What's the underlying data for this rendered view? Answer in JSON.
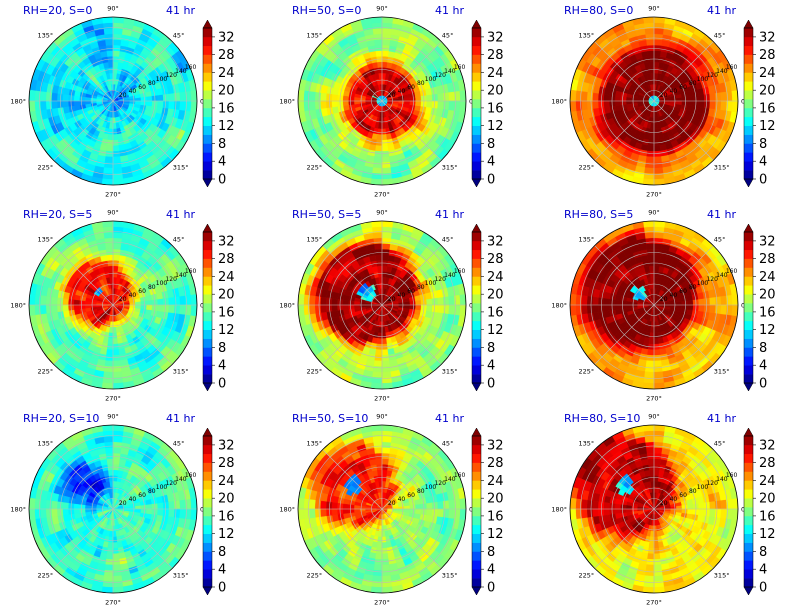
{
  "figure": {
    "colormap": "jet",
    "colorbar": {
      "min": 0,
      "max": 34,
      "ticks": [
        0,
        4,
        8,
        12,
        16,
        20,
        24,
        28,
        32
      ],
      "extend": "both"
    },
    "title_color": "#0000cc",
    "grid_color": "#bbbbbb"
  },
  "chart_data": [
    {
      "type": "heatmap",
      "projection": "polar",
      "title": "RH=20, S=0",
      "time_label": "41 hr",
      "angle_ticks": [
        "0°",
        "45°",
        "90°",
        "135°",
        "180°",
        "225°",
        "270°",
        "315°"
      ],
      "radius_ticks": [
        "20",
        "40",
        "60",
        "80",
        "100",
        "120",
        "140",
        "160"
      ],
      "radius_tick_angle_deg": 22.5,
      "rh": 20,
      "shear": 0,
      "core_level": 9,
      "inner_radius": 0,
      "outer_radius": 0.08,
      "env_level": 13,
      "spread": 7,
      "colorbar_ticks": [
        "0",
        "4",
        "8",
        "12",
        "16",
        "20",
        "24",
        "28",
        "32"
      ]
    },
    {
      "type": "heatmap",
      "projection": "polar",
      "title": "RH=50, S=0",
      "time_label": "41 hr",
      "angle_ticks": [
        "0°",
        "45°",
        "90°",
        "135°",
        "180°",
        "225°",
        "270°",
        "315°"
      ],
      "radius_ticks": [
        "20",
        "40",
        "60",
        "80",
        "100",
        "120",
        "140",
        "160"
      ],
      "radius_tick_angle_deg": 22.5,
      "rh": 50,
      "shear": 0,
      "core_level": 31,
      "inner_radius": 0.1,
      "outer_radius": 0.4,
      "env_level": 17,
      "spread": 6,
      "colorbar_ticks": [
        "0",
        "4",
        "8",
        "12",
        "16",
        "20",
        "24",
        "28",
        "32"
      ]
    },
    {
      "type": "heatmap",
      "projection": "polar",
      "title": "RH=80, S=0",
      "time_label": "41 hr",
      "angle_ticks": [
        "0°",
        "45°",
        "90°",
        "135°",
        "180°",
        "225°",
        "270°",
        "315°"
      ],
      "radius_ticks": [
        "20",
        "40",
        "60",
        "80",
        "100",
        "120",
        "140",
        "160"
      ],
      "radius_tick_angle_deg": 22.5,
      "rh": 80,
      "shear": 0,
      "core_level": 34,
      "inner_radius": 0.08,
      "outer_radius": 0.6,
      "env_level": 24,
      "spread": 5,
      "colorbar_ticks": [
        "0",
        "4",
        "8",
        "12",
        "16",
        "20",
        "24",
        "28",
        "32"
      ]
    },
    {
      "type": "heatmap",
      "projection": "polar",
      "title": "RH=20, S=5",
      "time_label": "41 hr",
      "angle_ticks": [
        "0°",
        "45°",
        "90°",
        "135°",
        "180°",
        "225°",
        "270°",
        "315°"
      ],
      "radius_ticks": [
        "20",
        "40",
        "60",
        "80",
        "100",
        "120",
        "140",
        "160"
      ],
      "radius_tick_angle_deg": 22.5,
      "rh": 20,
      "shear": 5,
      "core_level": 30,
      "inner_radius": 0.05,
      "outer_radius": 0.35,
      "env_level": 15,
      "spread": 6,
      "colorbar_ticks": [
        "0",
        "4",
        "8",
        "12",
        "16",
        "20",
        "24",
        "28",
        "32"
      ]
    },
    {
      "type": "heatmap",
      "projection": "polar",
      "title": "RH=50, S=5",
      "time_label": "41 hr",
      "angle_ticks": [
        "0°",
        "45°",
        "90°",
        "135°",
        "180°",
        "225°",
        "270°",
        "315°"
      ],
      "radius_ticks": [
        "20",
        "40",
        "60",
        "80",
        "100",
        "120",
        "140",
        "160"
      ],
      "radius_tick_angle_deg": 22.5,
      "rh": 50,
      "shear": 5,
      "core_level": 33,
      "inner_radius": 0.1,
      "outer_radius": 0.55,
      "env_level": 17,
      "spread": 6,
      "colorbar_ticks": [
        "0",
        "4",
        "8",
        "12",
        "16",
        "20",
        "24",
        "28",
        "32"
      ]
    },
    {
      "type": "heatmap",
      "projection": "polar",
      "title": "RH=80, S=5",
      "time_label": "41 hr",
      "angle_ticks": [
        "0°",
        "45°",
        "90°",
        "135°",
        "180°",
        "225°",
        "270°",
        "315°"
      ],
      "radius_ticks": [
        "20",
        "40",
        "60",
        "80",
        "100",
        "120",
        "140",
        "160"
      ],
      "radius_tick_angle_deg": 22.5,
      "rh": 80,
      "shear": 5,
      "core_level": 34,
      "inner_radius": 0.08,
      "outer_radius": 0.62,
      "env_level": 23,
      "spread": 5,
      "colorbar_ticks": [
        "0",
        "4",
        "8",
        "12",
        "16",
        "20",
        "24",
        "28",
        "32"
      ]
    },
    {
      "type": "heatmap",
      "projection": "polar",
      "title": "RH=20, S=10",
      "time_label": "41 hr",
      "angle_ticks": [
        "0°",
        "45°",
        "90°",
        "135°",
        "180°",
        "225°",
        "270°",
        "315°"
      ],
      "radius_ticks": [
        "20",
        "40",
        "60",
        "80",
        "100",
        "120",
        "140",
        "160"
      ],
      "radius_tick_angle_deg": 22.5,
      "rh": 20,
      "shear": 10,
      "core_level": 6,
      "inner_radius": 0,
      "outer_radius": 0.2,
      "env_level": 15,
      "spread": 6,
      "colorbar_ticks": [
        "0",
        "4",
        "8",
        "12",
        "16",
        "20",
        "24",
        "28",
        "32"
      ]
    },
    {
      "type": "heatmap",
      "projection": "polar",
      "title": "RH=50, S=10",
      "time_label": "41 hr",
      "angle_ticks": [
        "0°",
        "45°",
        "90°",
        "135°",
        "180°",
        "225°",
        "270°",
        "315°"
      ],
      "radius_ticks": [
        "20",
        "40",
        "60",
        "80",
        "100",
        "120",
        "140",
        "160"
      ],
      "radius_tick_angle_deg": 22.5,
      "rh": 50,
      "shear": 10,
      "core_level": 29,
      "inner_radius": 0.1,
      "outer_radius": 0.45,
      "env_level": 17,
      "spread": 6,
      "colorbar_ticks": [
        "0",
        "4",
        "8",
        "12",
        "16",
        "20",
        "24",
        "28",
        "32"
      ]
    },
    {
      "type": "heatmap",
      "projection": "polar",
      "title": "RH=80, S=10",
      "time_label": "41 hr",
      "angle_ticks": [
        "0°",
        "45°",
        "90°",
        "135°",
        "180°",
        "225°",
        "270°",
        "315°"
      ],
      "radius_ticks": [
        "20",
        "40",
        "60",
        "80",
        "100",
        "120",
        "140",
        "160"
      ],
      "radius_tick_angle_deg": 22.5,
      "rh": 80,
      "shear": 10,
      "core_level": 32,
      "inner_radius": 0.1,
      "outer_radius": 0.55,
      "env_level": 21,
      "spread": 6,
      "colorbar_ticks": [
        "0",
        "4",
        "8",
        "12",
        "16",
        "20",
        "24",
        "28",
        "32"
      ]
    }
  ]
}
